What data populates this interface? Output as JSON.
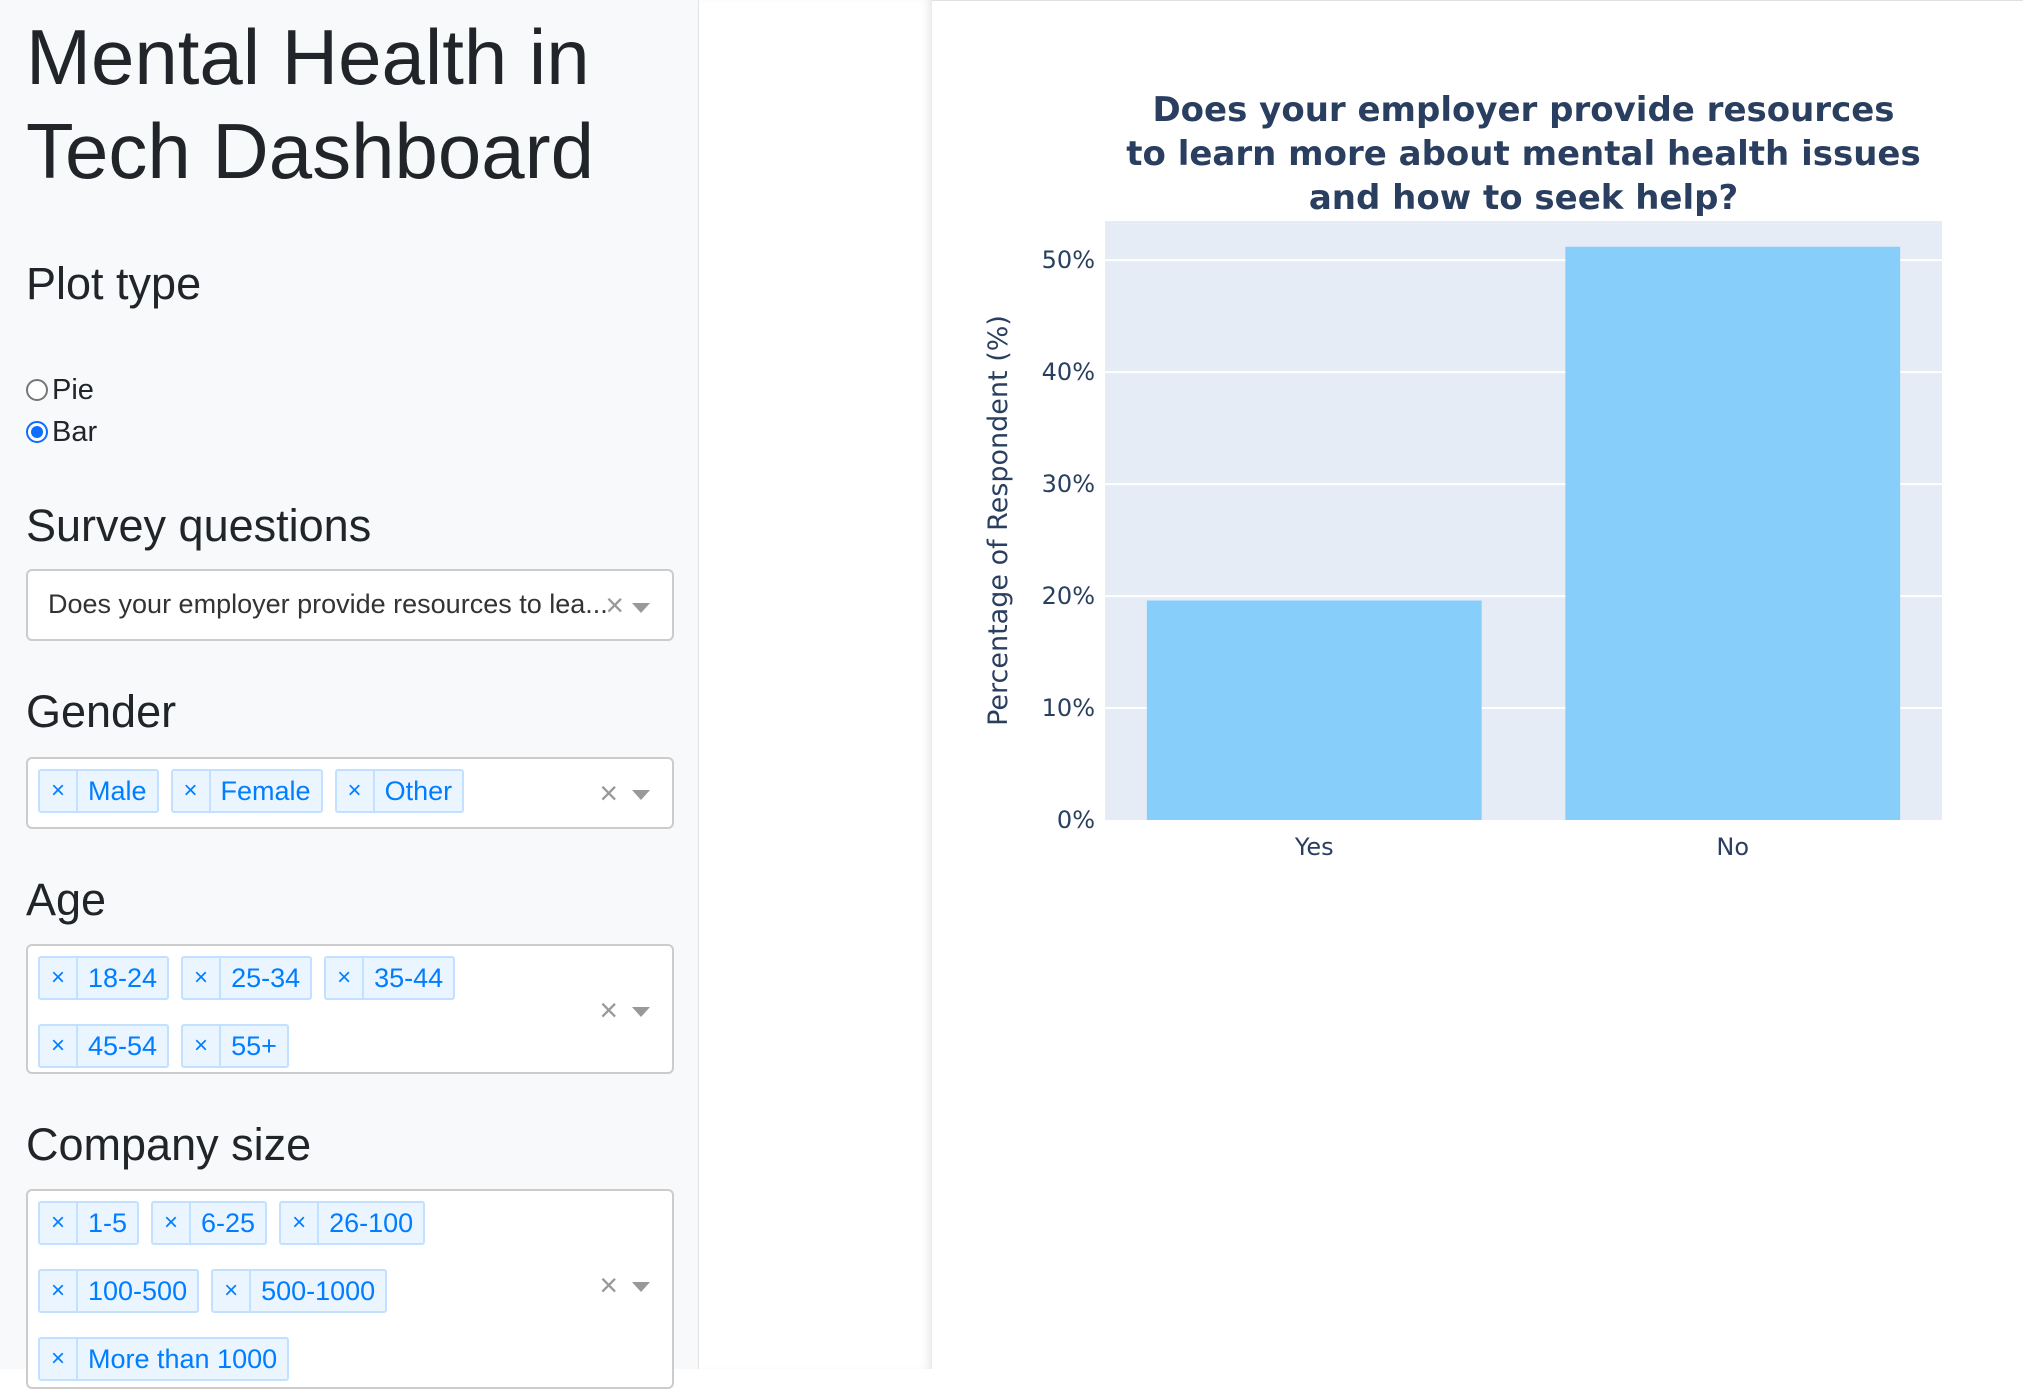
{
  "app": {
    "title": "Mental Health in Tech Dashboard"
  },
  "controls": {
    "plot_type": {
      "label": "Plot type",
      "options": [
        {
          "label": "Pie",
          "checked": false
        },
        {
          "label": "Bar",
          "checked": true
        }
      ]
    },
    "survey_questions": {
      "label": "Survey questions",
      "value": "Does your employer provide resources to learn more about mental health issues and how to seek help?",
      "display_value": "Does your employer provide resources to lea..."
    },
    "gender": {
      "label": "Gender",
      "selected": [
        "Male",
        "Female",
        "Other"
      ]
    },
    "age": {
      "label": "Age",
      "selected": [
        "18-24",
        "25-34",
        "35-44",
        "45-54",
        "55+"
      ]
    },
    "company_size": {
      "label": "Company size",
      "selected": [
        "1-5",
        "6-25",
        "26-100",
        "100-500",
        "500-1000",
        "More than 1000"
      ]
    },
    "remove_glyph": "×",
    "clear_glyph": "×",
    "icons": {
      "remove": "close-icon",
      "clear": "clear-icon",
      "dropdown": "caret-down-icon"
    }
  },
  "chart_data": {
    "type": "bar",
    "title_lines": [
      "Does your employer provide resources",
      "to learn more about mental health issues",
      "and how to seek help?"
    ],
    "categories": [
      "Yes",
      "No"
    ],
    "values": [
      19.6,
      51.2
    ],
    "ylabel": "Percentage of Respondent (%)",
    "xlabel": "",
    "ylim": [
      0,
      53.5
    ],
    "yticks": [
      0,
      10,
      20,
      30,
      40,
      50
    ],
    "ytick_labels": [
      "0%",
      "10%",
      "20%",
      "30%",
      "40%",
      "50%"
    ],
    "grid": true,
    "bar_color": "#87cefa",
    "plot_bg": "#e5ecf6"
  }
}
